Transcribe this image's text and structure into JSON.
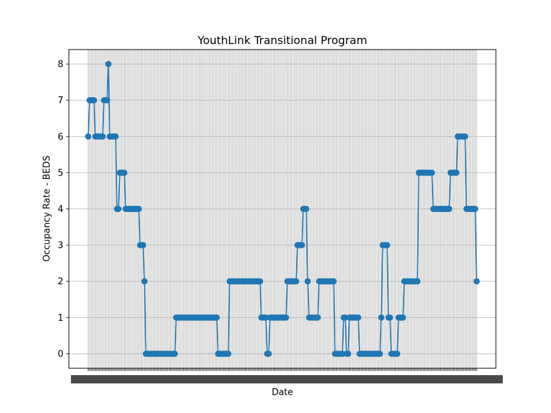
{
  "chart_data": {
    "type": "line",
    "title": "YouthLink Transitional Program",
    "xlabel": "Date",
    "ylabel": "Occupancy Rate - BEDS",
    "ylim": [
      -0.4,
      8.4
    ],
    "yticks": [
      0,
      1,
      2,
      3,
      4,
      5,
      6,
      7,
      8
    ],
    "grid": true,
    "marker": "circle",
    "color": "#1f77b4",
    "series": [
      {
        "values": [
          6,
          7,
          7,
          7,
          7,
          6,
          6,
          6,
          6,
          6,
          6,
          7,
          7,
          7,
          8,
          6,
          6,
          6,
          6,
          6,
          4,
          4,
          5,
          5,
          5,
          5,
          4,
          4,
          4,
          4,
          4,
          4,
          4,
          4,
          4,
          4,
          3,
          3,
          3,
          2,
          0,
          0,
          0,
          0,
          0,
          0,
          0,
          0,
          0,
          0,
          0,
          0,
          0,
          0,
          0,
          0,
          0,
          0,
          0,
          0,
          0,
          1,
          1,
          1,
          1,
          1,
          1,
          1,
          1,
          1,
          1,
          1,
          1,
          1,
          1,
          1,
          1,
          1,
          1,
          1,
          1,
          1,
          1,
          1,
          1,
          1,
          1,
          1,
          1,
          1,
          0,
          0,
          0,
          0,
          0,
          0,
          0,
          0,
          2,
          2,
          2,
          2,
          2,
          2,
          2,
          2,
          2,
          2,
          2,
          2,
          2,
          2,
          2,
          2,
          2,
          2,
          2,
          2,
          2,
          2,
          1,
          1,
          1,
          1,
          0,
          0,
          1,
          1,
          1,
          1,
          1,
          1,
          1,
          1,
          1,
          1,
          1,
          1,
          2,
          2,
          2,
          2,
          2,
          2,
          2,
          3,
          3,
          3,
          3,
          4,
          4,
          4,
          2,
          1,
          1,
          1,
          1,
          1,
          1,
          1,
          2,
          2,
          2,
          2,
          2,
          2,
          2,
          2,
          2,
          2,
          2,
          0,
          0,
          0,
          0,
          0,
          0,
          1,
          1,
          0,
          0,
          1,
          1,
          1,
          1,
          1,
          1,
          1,
          0,
          0,
          0,
          0,
          0,
          0,
          0,
          0,
          0,
          0,
          0,
          0,
          0,
          0,
          0,
          1,
          3,
          3,
          3,
          3,
          1,
          1,
          0,
          0,
          0,
          0,
          0,
          1,
          1,
          1,
          1,
          2,
          2,
          2,
          2,
          2,
          2,
          2,
          2,
          2,
          2,
          5,
          5,
          5,
          5,
          5,
          5,
          5,
          5,
          5,
          5,
          4,
          4,
          4,
          4,
          4,
          4,
          4,
          4,
          4,
          4,
          4,
          4,
          5,
          5,
          5,
          5,
          5,
          6,
          6,
          6,
          6,
          6,
          6,
          4,
          4,
          4,
          4,
          4,
          4,
          4,
          2
        ]
      }
    ]
  }
}
